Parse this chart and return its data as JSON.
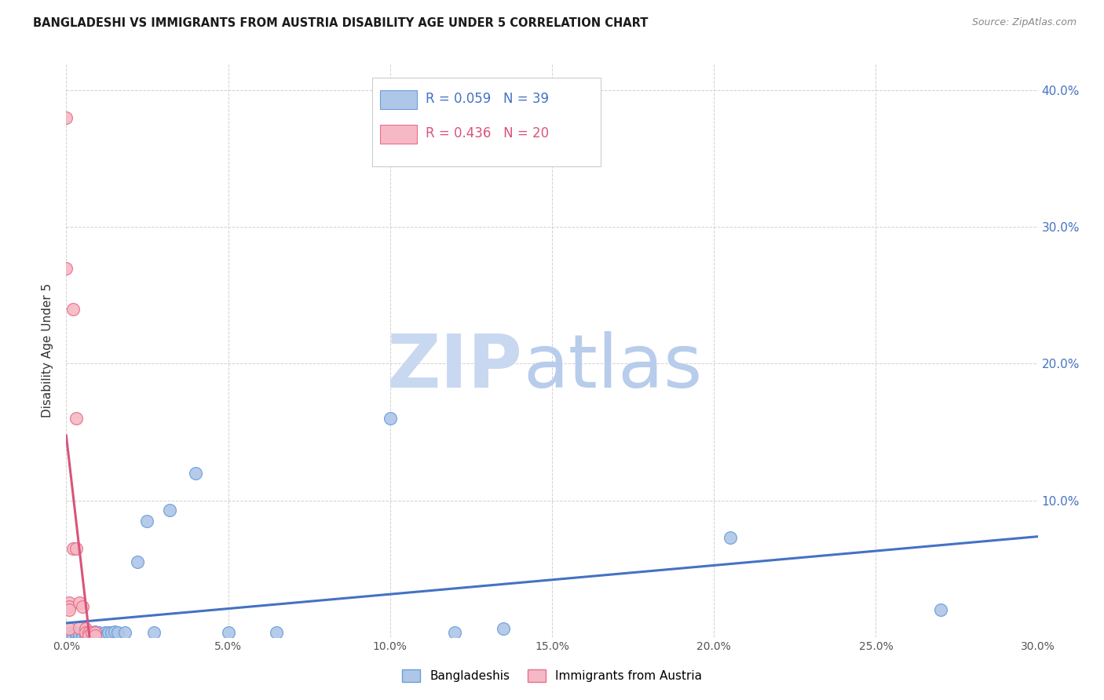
{
  "title": "BANGLADESHI VS IMMIGRANTS FROM AUSTRIA DISABILITY AGE UNDER 5 CORRELATION CHART",
  "source": "Source: ZipAtlas.com",
  "ylabel": "Disability Age Under 5",
  "xmin": 0.0,
  "xmax": 0.3,
  "ymin": 0.0,
  "ymax": 0.42,
  "xtick_vals": [
    0.0,
    0.05,
    0.1,
    0.15,
    0.2,
    0.25,
    0.3
  ],
  "ytick_vals": [
    0.0,
    0.1,
    0.2,
    0.3,
    0.4
  ],
  "blue_r": 0.059,
  "blue_n": 39,
  "pink_r": 0.436,
  "pink_n": 20,
  "blue_color": "#aec6e8",
  "pink_color": "#f5b8c4",
  "blue_edge_color": "#6a9fd8",
  "pink_edge_color": "#e8708a",
  "blue_line_color": "#4472c4",
  "pink_line_color": "#d9547a",
  "pink_dash_color": "#e8a0b8",
  "blue_points_x": [
    0.001,
    0.002,
    0.003,
    0.003,
    0.004,
    0.004,
    0.005,
    0.005,
    0.006,
    0.006,
    0.007,
    0.007,
    0.008,
    0.008,
    0.009,
    0.009,
    0.009,
    0.01,
    0.01,
    0.01,
    0.012,
    0.012,
    0.013,
    0.014,
    0.015,
    0.016,
    0.018,
    0.022,
    0.025,
    0.027,
    0.032,
    0.04,
    0.05,
    0.065,
    0.1,
    0.12,
    0.135,
    0.205,
    0.27
  ],
  "blue_points_y": [
    0.003,
    0.001,
    0.001,
    0.003,
    0.0,
    0.002,
    0.002,
    0.0,
    0.001,
    0.003,
    0.001,
    0.0,
    0.002,
    0.003,
    0.001,
    0.0,
    0.004,
    0.002,
    0.003,
    0.0,
    0.003,
    0.001,
    0.003,
    0.003,
    0.004,
    0.003,
    0.003,
    0.055,
    0.085,
    0.003,
    0.093,
    0.12,
    0.003,
    0.003,
    0.16,
    0.003,
    0.006,
    0.073,
    0.02
  ],
  "pink_points_x": [
    0.0,
    0.0,
    0.001,
    0.001,
    0.001,
    0.001,
    0.002,
    0.002,
    0.003,
    0.003,
    0.004,
    0.004,
    0.005,
    0.006,
    0.006,
    0.007,
    0.007,
    0.008,
    0.009,
    0.009
  ],
  "pink_points_y": [
    0.38,
    0.27,
    0.025,
    0.022,
    0.02,
    0.006,
    0.24,
    0.065,
    0.16,
    0.065,
    0.025,
    0.007,
    0.022,
    0.006,
    0.003,
    0.003,
    0.001,
    0.003,
    0.003,
    0.001
  ],
  "watermark_zip": "ZIP",
  "watermark_atlas": "atlas"
}
